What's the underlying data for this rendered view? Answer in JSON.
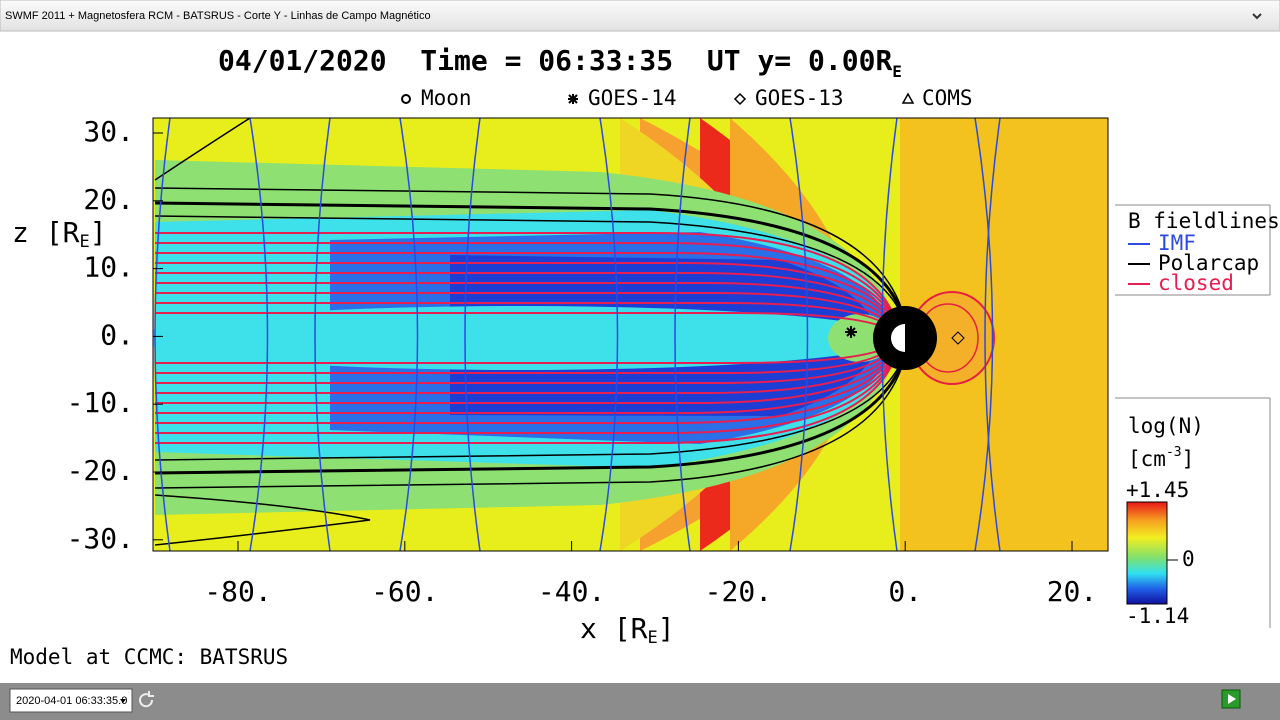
{
  "window": {
    "title": "SWMF 2011 + Magnetosfera RCM - BATSRUS - Corte Y - Linhas de Campo Magnético"
  },
  "plot": {
    "title": "04/01/2020  Time = 06:33:35  UT y= 0.00R",
    "title_sub": "E",
    "markers": [
      "Moon",
      "GOES-14",
      "GOES-13",
      "COMS"
    ],
    "x_axis": {
      "label": "x [R",
      "label_sub": "E",
      "label_end": "]",
      "ticks": [
        "-80.",
        "-60.",
        "-40.",
        "-20.",
        "0.",
        "20."
      ]
    },
    "y_axis": {
      "label": "z [R",
      "label_sub": "E",
      "label_end": "]",
      "ticks": [
        "30.",
        "20.",
        "10.",
        "0.",
        "-10.",
        "-20.",
        "-30."
      ]
    },
    "fieldlines": {
      "title": "B fieldlines",
      "items": [
        "IMF",
        "Polarcap",
        "closed"
      ]
    },
    "colorbar": {
      "title": "log(N)",
      "unit": "[cm",
      "unit_sup": "-3",
      "unit_end": "]",
      "max": "+1.45",
      "mid": "0",
      "min": "-1.14"
    },
    "credit": "Model at CCMC: BATSRUS"
  },
  "toolbar": {
    "time": "2020-04-01 06:33:35.0"
  }
}
